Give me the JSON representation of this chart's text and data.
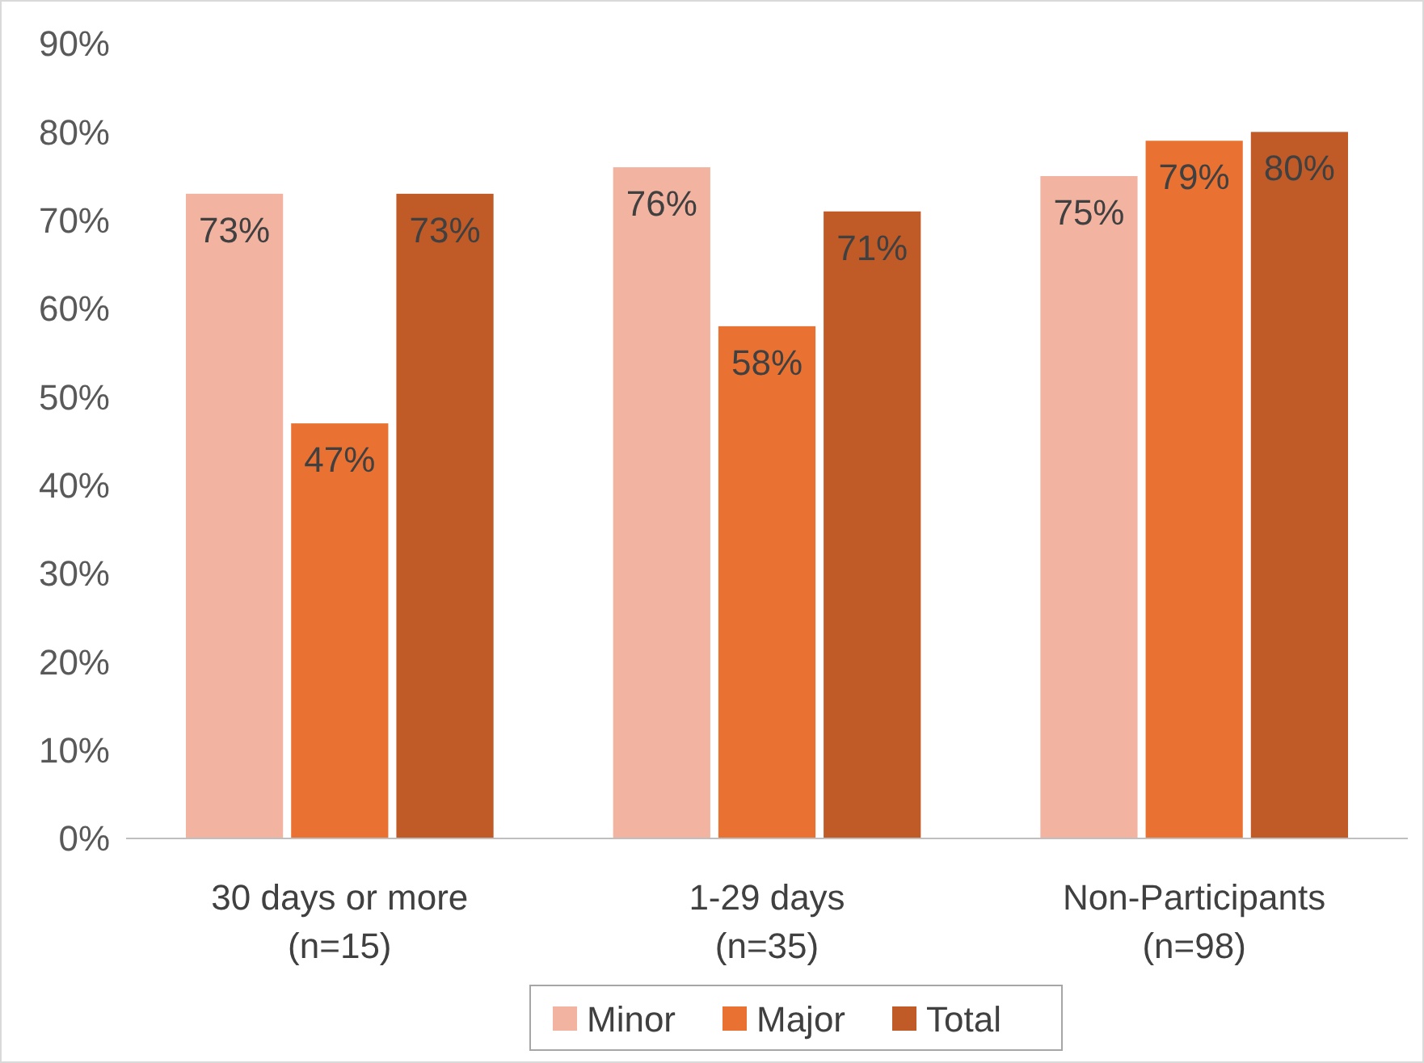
{
  "chart_data": {
    "type": "bar",
    "categories": [
      "30 days or more\n(n=15)",
      "1-29 days\n(n=35)",
      "Non-Participants\n(n=98)"
    ],
    "series": [
      {
        "name": "Minor",
        "color": "#f2b3a0",
        "values": [
          73,
          76,
          75
        ],
        "value_labels": [
          "73%",
          "76%",
          "75%"
        ]
      },
      {
        "name": "Major",
        "color": "#e97132",
        "values": [
          47,
          58,
          79
        ],
        "value_labels": [
          "47%",
          "58%",
          "79%"
        ]
      },
      {
        "name": "Total",
        "color": "#c05a27",
        "values": [
          73,
          71,
          80
        ],
        "value_labels": [
          "73%",
          "71%",
          "80%"
        ]
      }
    ],
    "ylim": [
      0,
      90
    ],
    "yticks": [
      {
        "value": 0,
        "label": "0%"
      },
      {
        "value": 10,
        "label": "10%"
      },
      {
        "value": 20,
        "label": "20%"
      },
      {
        "value": 30,
        "label": "30%"
      },
      {
        "value": 40,
        "label": "40%"
      },
      {
        "value": 50,
        "label": "50%"
      },
      {
        "value": 60,
        "label": "60%"
      },
      {
        "value": 70,
        "label": "70%"
      },
      {
        "value": 80,
        "label": "80%"
      },
      {
        "value": 90,
        "label": "90%"
      }
    ],
    "legend": "bottom",
    "grid": false
  }
}
